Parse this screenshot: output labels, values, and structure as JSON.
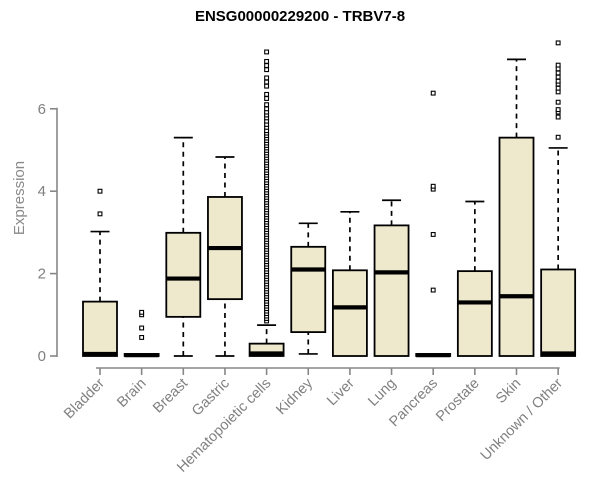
{
  "chart_data": {
    "type": "boxplot",
    "title": "ENSG00000229200 - TRBV7-8",
    "ylabel": "Expression",
    "xlabel": "",
    "yticks": [
      0,
      2,
      4,
      6
    ],
    "ylim": [
      0,
      7.67
    ],
    "grid": false,
    "legend": false,
    "categories": [
      "Bladder",
      "Brain",
      "Breast",
      "Gastric",
      "Hematopoietic cells",
      "Kidney",
      "Liver",
      "Lung",
      "Pancreas",
      "Prostate",
      "Skin",
      "Unknown / Other"
    ],
    "boxes": [
      {
        "category": "Bladder",
        "whisker_low": 0,
        "q1": 0,
        "median": 0.05,
        "q3": 1.32,
        "whisker_high": 3.02,
        "outliers": [
          3.45,
          4.0
        ]
      },
      {
        "category": "Brain",
        "whisker_low": 0,
        "q1": 0,
        "median": 0.02,
        "q3": 0.05,
        "whisker_high": 0.05,
        "outliers": [
          0.45,
          0.68,
          1.0,
          1.06
        ]
      },
      {
        "category": "Breast",
        "whisker_low": 0,
        "q1": 0.95,
        "median": 1.88,
        "q3": 2.99,
        "whisker_high": 5.3,
        "outliers": []
      },
      {
        "category": "Gastric",
        "whisker_low": 0,
        "q1": 1.38,
        "median": 2.62,
        "q3": 3.86,
        "whisker_high": 4.83,
        "outliers": []
      },
      {
        "category": "Hematopoietic cells",
        "whisker_low": 0,
        "q1": 0,
        "median": 0.06,
        "q3": 0.3,
        "whisker_high": 0.75,
        "outliers": [
          0.85,
          0.91,
          0.97,
          1.03,
          1.09,
          1.15,
          1.21,
          1.27,
          1.33,
          1.39,
          1.45,
          1.51,
          1.57,
          1.63,
          1.69,
          1.75,
          1.81,
          1.87,
          1.93,
          1.99,
          2.05,
          2.11,
          2.17,
          2.23,
          2.29,
          2.35,
          2.41,
          2.47,
          2.53,
          2.59,
          2.65,
          2.71,
          2.77,
          2.83,
          2.89,
          2.95,
          3.01,
          3.07,
          3.13,
          3.19,
          3.25,
          3.31,
          3.37,
          3.43,
          3.49,
          3.55,
          3.61,
          3.67,
          3.73,
          3.79,
          3.85,
          3.91,
          3.97,
          4.03,
          4.09,
          4.15,
          4.21,
          4.27,
          4.33,
          4.39,
          4.45,
          4.51,
          4.57,
          4.63,
          4.69,
          4.75,
          4.81,
          4.87,
          4.93,
          4.99,
          5.05,
          5.11,
          5.17,
          5.23,
          5.29,
          5.35,
          5.41,
          5.47,
          5.55,
          5.62,
          5.7,
          5.78,
          5.85,
          5.92,
          6.0,
          6.1,
          6.25,
          6.35,
          6.55,
          6.65,
          6.75,
          6.95,
          7.05,
          7.15,
          7.38
        ]
      },
      {
        "category": "Kidney",
        "whisker_low": 0.05,
        "q1": 0.58,
        "median": 2.1,
        "q3": 2.65,
        "whisker_high": 3.22,
        "outliers": []
      },
      {
        "category": "Liver",
        "whisker_low": 0,
        "q1": 0,
        "median": 1.18,
        "q3": 2.08,
        "whisker_high": 3.5,
        "outliers": []
      },
      {
        "category": "Lung",
        "whisker_low": 0,
        "q1": 0,
        "median": 2.03,
        "q3": 3.17,
        "whisker_high": 3.78,
        "outliers": []
      },
      {
        "category": "Pancreas",
        "whisker_low": 0,
        "q1": 0,
        "median": 0.02,
        "q3": 0.05,
        "whisker_high": 0.05,
        "outliers": [
          1.6,
          2.95,
          4.05,
          4.12,
          6.38
        ]
      },
      {
        "category": "Prostate",
        "whisker_low": 0,
        "q1": 0,
        "median": 1.3,
        "q3": 2.06,
        "whisker_high": 3.75,
        "outliers": []
      },
      {
        "category": "Skin",
        "whisker_low": 0,
        "q1": 0,
        "median": 1.45,
        "q3": 5.3,
        "whisker_high": 7.2,
        "outliers": []
      },
      {
        "category": "Unknown / Other",
        "whisker_low": 0,
        "q1": 0,
        "median": 0.06,
        "q3": 2.1,
        "whisker_high": 5.05,
        "outliers": [
          5.31,
          5.8,
          5.92,
          5.98,
          6.16,
          6.41,
          6.5,
          6.6,
          6.67,
          6.77,
          6.87,
          6.97,
          7.06,
          7.6
        ]
      }
    ],
    "colors": {
      "box_fill": "#EEE8CD",
      "box_border": "#000000",
      "median": "#000000",
      "outlier": "#000000",
      "axis": "#878787",
      "tick_label": "#808080",
      "axis_title": "#8A8A8A",
      "title": "#000000",
      "background": "#FFFFFF"
    }
  }
}
